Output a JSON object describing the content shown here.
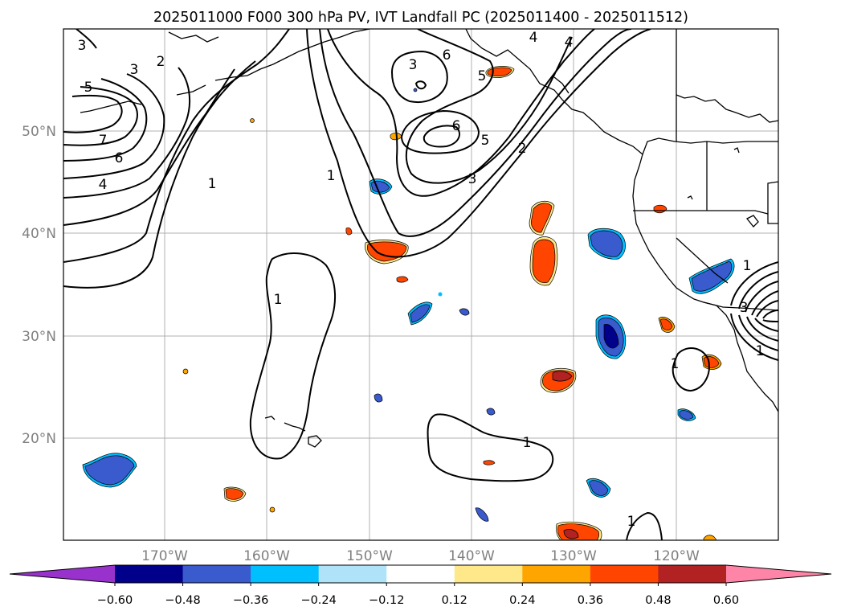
{
  "title": "2025011000 F000 300 hPa PV, IVT Landfall PC (2025011400 - 2025011512)",
  "map": {
    "lon_labels": [
      "170°W",
      "160°W",
      "150°W",
      "140°W",
      "130°W",
      "120°W"
    ],
    "lat_labels": [
      "50°N",
      "40°N",
      "30°N",
      "20°N"
    ],
    "contour_labels": [
      "3",
      "3",
      "2",
      "5",
      "7",
      "6",
      "4",
      "1",
      "1",
      "1",
      "3",
      "6",
      "5",
      "6",
      "5",
      "4",
      "4",
      "2",
      "3",
      "1",
      "1",
      "1",
      "3",
      "1",
      "1"
    ]
  },
  "colorbar": {
    "tick_labels": [
      "−0.60",
      "−0.48",
      "−0.36",
      "−0.24",
      "−0.12",
      "0.12",
      "0.24",
      "0.36",
      "0.48",
      "0.60"
    ],
    "colors": [
      "#9932cc",
      "#00008b",
      "#3a5bcd",
      "#00bfff",
      "#aee3fa",
      "#ffffff",
      "#ffe88a",
      "#ffa500",
      "#ff4500",
      "#b22222",
      "#ff85a8"
    ]
  }
}
